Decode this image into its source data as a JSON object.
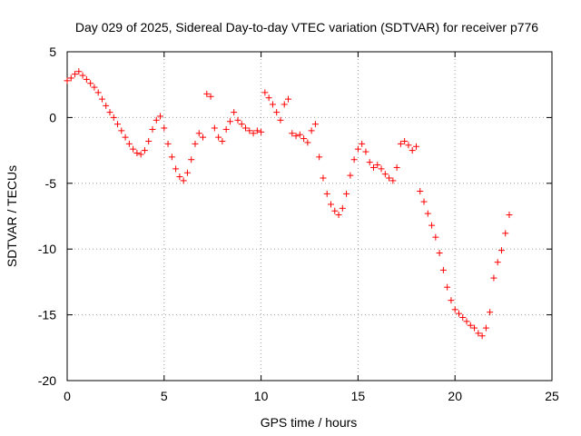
{
  "chart_data": {
    "type": "scatter",
    "title": "Day 029 of 2025, Sidereal Day-to-day VTEC variation (SDTVAR) for receiver p776",
    "xlabel": "GPS time / hours",
    "ylabel": "SDTVAR / TECUs",
    "xlim": [
      0,
      25
    ],
    "ylim": [
      -20,
      5
    ],
    "xticks": [
      0,
      5,
      10,
      15,
      20,
      25
    ],
    "yticks": [
      -20,
      -15,
      -10,
      -5,
      0,
      5
    ],
    "grid": true,
    "marker": "+",
    "color": "#ff0000",
    "series": [
      {
        "name": "p776",
        "x": [
          0.0,
          0.2,
          0.4,
          0.6,
          0.8,
          1.0,
          1.2,
          1.4,
          1.6,
          1.8,
          2.0,
          2.2,
          2.4,
          2.6,
          2.8,
          3.0,
          3.2,
          3.4,
          3.6,
          3.8,
          4.0,
          4.2,
          4.4,
          4.6,
          4.8,
          5.0,
          5.2,
          5.4,
          5.6,
          5.8,
          6.0,
          6.2,
          6.4,
          6.6,
          6.8,
          7.0,
          7.2,
          7.4,
          7.6,
          7.8,
          8.0,
          8.2,
          8.4,
          8.6,
          8.8,
          9.0,
          9.2,
          9.4,
          9.6,
          9.8,
          10.0,
          10.2,
          10.4,
          10.6,
          10.8,
          11.0,
          11.2,
          11.4,
          11.6,
          11.8,
          12.0,
          12.2,
          12.4,
          12.6,
          12.8,
          13.0,
          13.2,
          13.4,
          13.6,
          13.8,
          14.0,
          14.2,
          14.4,
          14.6,
          14.8,
          15.0,
          15.2,
          15.4,
          15.6,
          15.8,
          16.0,
          16.2,
          16.4,
          16.6,
          16.8,
          17.0,
          17.2,
          17.4,
          17.6,
          17.8,
          18.0,
          18.2,
          18.4,
          18.6,
          18.8,
          19.0,
          19.2,
          19.4,
          19.6,
          19.8,
          20.0,
          20.2,
          20.4,
          20.6,
          20.8,
          21.0,
          21.2,
          21.4,
          21.6,
          21.8,
          22.0,
          22.2,
          22.4,
          22.6,
          22.8
        ],
        "y": [
          2.8,
          3.0,
          3.3,
          3.5,
          3.2,
          2.9,
          2.6,
          2.3,
          1.9,
          1.4,
          0.9,
          0.4,
          0.0,
          -0.5,
          -1.0,
          -1.5,
          -2.0,
          -2.4,
          -2.7,
          -2.8,
          -2.5,
          -1.8,
          -0.9,
          -0.2,
          0.1,
          -0.8,
          -2.0,
          -3.0,
          -3.9,
          -4.5,
          -4.8,
          -4.2,
          -3.2,
          -2.0,
          -1.2,
          -1.5,
          1.8,
          1.6,
          -0.8,
          -1.5,
          -1.8,
          -0.9,
          -0.3,
          0.4,
          -0.2,
          -0.5,
          -0.8,
          -1.0,
          -1.2,
          -1.0,
          -1.1,
          1.9,
          1.5,
          1.0,
          0.4,
          -0.2,
          1.0,
          1.4,
          -1.2,
          -1.4,
          -1.3,
          -1.6,
          -1.9,
          -1.0,
          -0.5,
          -3.0,
          -4.6,
          -5.8,
          -6.6,
          -7.1,
          -7.4,
          -6.9,
          -5.8,
          -4.4,
          -3.2,
          -2.4,
          -2.0,
          -2.6,
          -3.4,
          -3.8,
          -3.6,
          -3.9,
          -4.3,
          -4.6,
          -4.8,
          -3.8,
          -2.0,
          -1.8,
          -2.1,
          -2.5,
          -2.2,
          -5.6,
          -6.4,
          -7.3,
          -8.2,
          -9.1,
          -10.3,
          -11.6,
          -12.9,
          -13.9,
          -14.6,
          -14.9,
          -15.2,
          -15.5,
          -15.8,
          -16.0,
          -16.4,
          -16.6,
          -16.0,
          -14.8,
          -12.2,
          -11.0,
          -10.1,
          -8.8,
          -7.4
        ]
      }
    ]
  }
}
